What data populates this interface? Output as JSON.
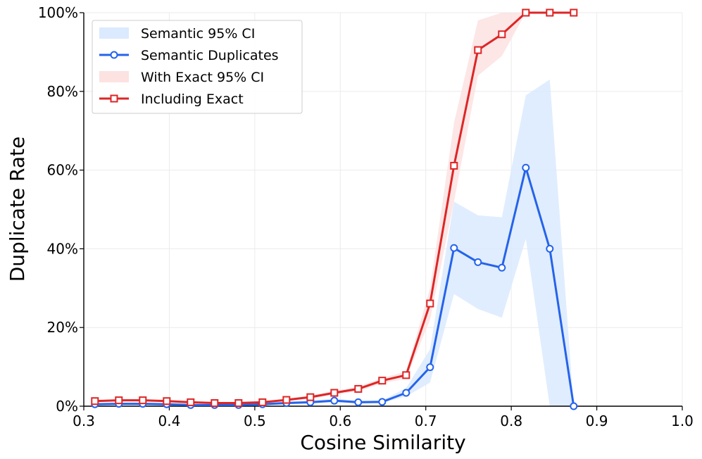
{
  "chart_data": {
    "type": "line",
    "xlabel": "Cosine Similarity",
    "ylabel": "Duplicate Rate",
    "xlim": [
      0.3,
      1.0
    ],
    "ylim": [
      0,
      100
    ],
    "x_ticks": [
      "0.3",
      "0.4",
      "0.5",
      "0.6",
      "0.7",
      "0.8",
      "0.9",
      "1.0"
    ],
    "y_ticks": [
      "0%",
      "20%",
      "40%",
      "60%",
      "80%",
      "100%"
    ],
    "grid": true,
    "legend_position": "top-left",
    "x": [
      0.313,
      0.341,
      0.369,
      0.397,
      0.425,
      0.453,
      0.481,
      0.509,
      0.537,
      0.565,
      0.593,
      0.621,
      0.649,
      0.677,
      0.705,
      0.733,
      0.761,
      0.789,
      0.817,
      0.845,
      0.873
    ],
    "series": [
      {
        "name": "Semantic Duplicates",
        "color": "#2563eb",
        "marker": "circle",
        "values": [
          0.5,
          0.6,
          0.6,
          0.5,
          0.3,
          0.3,
          0.3,
          0.5,
          0.8,
          1.0,
          1.4,
          1.0,
          1.1,
          3.4,
          9.9,
          40.2,
          36.6,
          35.2,
          60.6,
          40.0,
          0.0
        ],
        "ci_name": "Semantic 95% CI",
        "ci_color": "#dbeafe",
        "ci_lower": [
          0.2,
          0.3,
          0.3,
          0.2,
          0.1,
          0.1,
          0.1,
          0.2,
          0.5,
          0.7,
          1.0,
          0.7,
          0.8,
          2.5,
          6.0,
          28.5,
          24.7,
          22.5,
          42.5,
          0.0,
          0.0
        ],
        "ci_upper": [
          0.8,
          0.9,
          0.9,
          0.8,
          0.5,
          0.5,
          0.5,
          0.8,
          1.2,
          1.4,
          1.9,
          1.4,
          1.5,
          4.6,
          14.5,
          52.0,
          48.5,
          48.0,
          79.0,
          83.0,
          0.0
        ]
      },
      {
        "name": "Including Exact",
        "color": "#dc2626",
        "marker": "square",
        "values": [
          1.3,
          1.5,
          1.5,
          1.3,
          1.0,
          0.8,
          0.8,
          1.0,
          1.6,
          2.3,
          3.4,
          4.4,
          6.5,
          7.9,
          26.1,
          61.1,
          90.5,
          94.5,
          100,
          100,
          100
        ],
        "ci_name": "With Exact 95% CI",
        "ci_color": "#fde2e2",
        "ci_lower": [
          1.0,
          1.2,
          1.2,
          1.0,
          0.7,
          0.5,
          0.5,
          0.7,
          1.2,
          1.9,
          2.9,
          3.8,
          5.8,
          7.0,
          22.0,
          52.0,
          84.0,
          89.0,
          100,
          100,
          100
        ],
        "ci_upper": [
          1.6,
          1.8,
          1.8,
          1.6,
          1.3,
          1.1,
          1.1,
          1.3,
          2.0,
          2.7,
          3.9,
          5.0,
          7.2,
          8.8,
          30.0,
          72.0,
          98.0,
          100,
          100,
          100,
          100
        ]
      }
    ],
    "legend": [
      "Semantic 95% CI",
      "Semantic Duplicates",
      "With Exact 95% CI",
      "Including Exact"
    ]
  }
}
